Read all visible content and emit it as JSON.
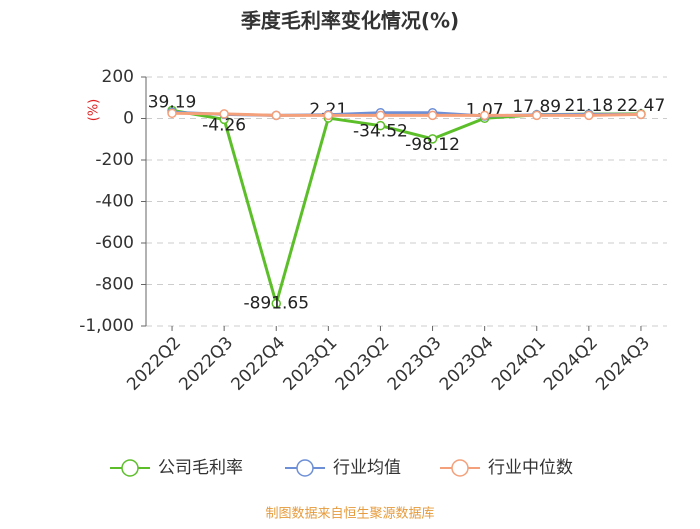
{
  "chart_data": {
    "type": "line",
    "title": "季度毛利率变化情况(%)",
    "y_label": "(%)",
    "categories": [
      "2022Q2",
      "2022Q3",
      "2022Q4",
      "2023Q1",
      "2023Q2",
      "2023Q3",
      "2023Q4",
      "2024Q1",
      "2024Q2",
      "2024Q3"
    ],
    "series": [
      {
        "name": "公司毛利率",
        "color": "#5cbf2a",
        "values": [
          39.19,
          -4.26,
          -891.65,
          2.21,
          -34.52,
          -98.12,
          1.07,
          17.89,
          21.18,
          22.47
        ],
        "show_labels": true
      },
      {
        "name": "行业均值",
        "color": "#6d8fd6",
        "values": [
          30,
          20,
          15,
          18,
          28,
          28,
          12,
          18,
          20,
          20
        ]
      },
      {
        "name": "行业中位数",
        "color": "#f4a07a",
        "values": [
          25,
          22,
          15,
          15,
          15,
          15,
          15,
          15,
          15,
          20
        ]
      }
    ],
    "ylim": [
      -1000,
      200
    ],
    "yticks": [
      200,
      0,
      -200,
      -400,
      -600,
      -800,
      {
        "value": -1000,
        "label": "-1,000"
      }
    ],
    "grid": true,
    "source": "制图数据来自恒生聚源数据库"
  }
}
